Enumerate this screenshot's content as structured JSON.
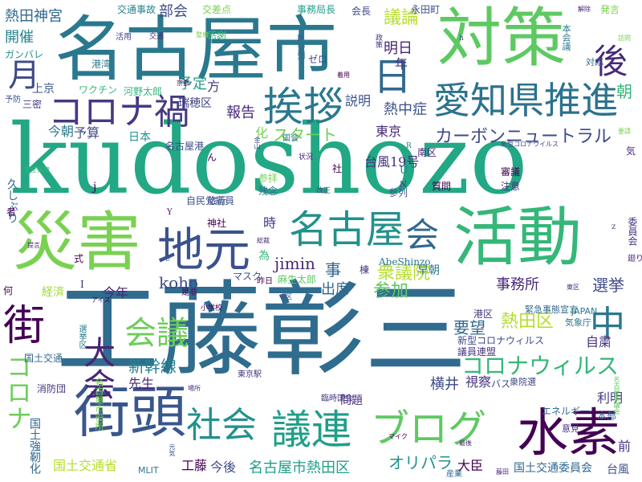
{
  "words": [
    {
      "text": "kudoshozo",
      "color": "#22A884"
    },
    {
      "text": "工藤彰三",
      "color": "#2F6C8E"
    },
    {
      "text": "名古屋市",
      "color": "#2A788E"
    },
    {
      "text": "対策",
      "color": "#5EC962"
    },
    {
      "text": "災害",
      "color": "#7AD151"
    },
    {
      "text": "活動",
      "color": "#35B779"
    },
    {
      "text": "地元",
      "color": "#3B528B"
    },
    {
      "text": "名古屋",
      "color": "#21918C"
    },
    {
      "text": "会",
      "color": "#31688E"
    },
    {
      "text": "愛知県推進",
      "color": "#2C728E"
    },
    {
      "text": "挨拶",
      "color": "#2A788E"
    },
    {
      "text": "コロナ禍",
      "color": "#443A83"
    },
    {
      "text": "日",
      "color": "#31688E"
    },
    {
      "text": "月",
      "color": "#3E4A89"
    },
    {
      "text": "後",
      "color": "#482878"
    },
    {
      "text": "街頭",
      "color": "#39568C"
    },
    {
      "text": "大会",
      "color": "#482475"
    },
    {
      "text": "会議",
      "color": "#6DCD59"
    },
    {
      "text": "社会",
      "color": "#21918C"
    },
    {
      "text": "議連",
      "color": "#1F9E89"
    },
    {
      "text": "ブログ",
      "color": "#5EC962"
    },
    {
      "text": "水素",
      "color": "#440154"
    },
    {
      "text": "街",
      "color": "#440154"
    },
    {
      "text": "中",
      "color": "#2A788E"
    },
    {
      "text": "コロナ",
      "color": "#6DCD59"
    },
    {
      "text": "コロナウィルス",
      "color": "#35B779"
    },
    {
      "text": "カーボンニュートラル",
      "color": "#3E4A89"
    },
    {
      "text": "熱田神宮",
      "color": "#31688E"
    },
    {
      "text": "開催",
      "color": "#26828E"
    },
    {
      "text": "部会",
      "color": "#3E4A89"
    },
    {
      "text": "議論",
      "color": "#B5DE2B"
    },
    {
      "text": "明日",
      "color": "#482475"
    },
    {
      "text": "年",
      "color": "#46337E"
    },
    {
      "text": "予定",
      "color": "#1F9E89"
    },
    {
      "text": "方",
      "color": "#443A83"
    },
    {
      "text": "報告",
      "color": "#482878"
    },
    {
      "text": "説明",
      "color": "#3B528B"
    },
    {
      "text": "瑞穂区",
      "color": "#414487"
    },
    {
      "text": "熱中症",
      "color": "#3B528B"
    },
    {
      "text": "東京",
      "color": "#482878"
    },
    {
      "text": "スタート",
      "color": "#6DCD59"
    },
    {
      "text": "今朝",
      "color": "#2A788E"
    },
    {
      "text": "予算",
      "color": "#3E4A89"
    },
    {
      "text": "日本",
      "color": "#21918C"
    },
    {
      "text": "上京",
      "color": "#3B528B"
    },
    {
      "text": "朝",
      "color": "#35B779"
    },
    {
      "text": "化",
      "color": "#7AD151"
    },
    {
      "text": "jimin",
      "color": "#482878"
    },
    {
      "text": "koho",
      "color": "#3E4A89"
    },
    {
      "text": "時",
      "color": "#443A83"
    },
    {
      "text": "事",
      "color": "#31688E"
    },
    {
      "text": "衆議院",
      "color": "#B5DE2B"
    },
    {
      "text": "参加",
      "color": "#5EC962"
    },
    {
      "text": "出席",
      "color": "#31688E"
    },
    {
      "text": "事務所",
      "color": "#482878"
    },
    {
      "text": "選挙",
      "color": "#3E4A89"
    },
    {
      "text": "要望",
      "color": "#31688E"
    },
    {
      "text": "熱田区",
      "color": "#B5DE2B"
    },
    {
      "text": "今年",
      "color": "#482475"
    },
    {
      "text": "新幹線",
      "color": "#26828E"
    },
    {
      "text": "先生",
      "color": "#482878"
    },
    {
      "text": "経済",
      "color": "#A0DA39"
    },
    {
      "text": "国土交通省",
      "color": "#B5DE2B"
    },
    {
      "text": "工藤",
      "color": "#440154"
    },
    {
      "text": "今後",
      "color": "#3E4A89"
    },
    {
      "text": "名古屋市熱田区",
      "color": "#1F9E89"
    },
    {
      "text": "オリパラ",
      "color": "#21918C"
    },
    {
      "text": "大臣",
      "color": "#440154"
    },
    {
      "text": "横井",
      "color": "#3E4A89"
    },
    {
      "text": "問題",
      "color": "#482878"
    },
    {
      "text": "視察",
      "color": "#46337E"
    },
    {
      "text": "新型コロナウィルス",
      "color": "#3E4A89"
    },
    {
      "text": "議員連盟",
      "color": "#46337E"
    },
    {
      "text": "自粛",
      "color": "#46337E"
    },
    {
      "text": "利明",
      "color": "#443A83"
    },
    {
      "text": "前",
      "color": "#46337E"
    },
    {
      "text": "国土交通委員会",
      "color": "#31688E"
    },
    {
      "text": "台風",
      "color": "#3B528B"
    },
    {
      "text": "エネルギー",
      "color": "#31688E"
    },
    {
      "text": "本部",
      "color": "#31688E"
    },
    {
      "text": "緊急事態宣言",
      "color": "#31688E"
    },
    {
      "text": "港区",
      "color": "#46337E"
    },
    {
      "text": "バス",
      "color": "#3E4A89"
    },
    {
      "text": "衆院選",
      "color": "#414487"
    },
    {
      "text": "早朝",
      "color": "#2A788E"
    },
    {
      "text": "AbeShinzo",
      "color": "#2A788E"
    },
    {
      "text": "麻生太郎",
      "color": "#5EC962"
    },
    {
      "text": "マスク",
      "color": "#3B528B"
    },
    {
      "text": "為",
      "color": "#35B779"
    },
    {
      "text": "旅行",
      "color": "#3E4A89"
    },
    {
      "text": "参拝",
      "color": "#7AD151"
    },
    {
      "text": "残念",
      "color": "#31688E"
    },
    {
      "text": "神社",
      "color": "#440154"
    },
    {
      "text": "台風19号",
      "color": "#46337E"
    },
    {
      "text": "参列",
      "color": "#39568C"
    },
    {
      "text": "質問",
      "color": "#440154"
    },
    {
      "text": "注意",
      "color": "#46337E"
    },
    {
      "text": "審議",
      "color": "#440154"
    },
    {
      "text": "南区",
      "color": "#482878"
    },
    {
      "text": "自民党議員",
      "color": "#3B528B"
    },
    {
      "text": "名古屋港",
      "color": "#3E4A89"
    },
    {
      "text": "ワクチン",
      "color": "#35B779"
    },
    {
      "text": "港湾",
      "color": "#2A788E"
    },
    {
      "text": "河野太郎",
      "color": "#35B779"
    },
    {
      "text": "久しぶり",
      "color": "#31688E"
    },
    {
      "text": "三密",
      "color": "#443A83"
    },
    {
      "text": "ガンバレ",
      "color": "#21918C"
    },
    {
      "text": "交通事故",
      "color": "#26828E"
    },
    {
      "text": "交差点",
      "color": "#7AD151"
    },
    {
      "text": "感謝",
      "color": "#35B779"
    },
    {
      "text": "事務局長",
      "color": "#1F9E89"
    },
    {
      "text": "会長",
      "color": "#3E4A89"
    },
    {
      "text": "永田町",
      "color": "#3E4A89"
    },
    {
      "text": "発言",
      "color": "#7AD151"
    },
    {
      "text": "委員会",
      "color": "#46337E"
    },
    {
      "text": "選挙区",
      "color": "#2A788E"
    },
    {
      "text": "名古屋市役所",
      "color": "#7AD151"
    },
    {
      "text": "国土交通",
      "color": "#31688E"
    },
    {
      "text": "消防団",
      "color": "#46337E"
    },
    {
      "text": "国土強靭化",
      "color": "#31688E"
    },
    {
      "text": "MLIT",
      "color": "#2A788E"
    },
    {
      "text": "JAPAN",
      "color": "#2A788E"
    },
    {
      "text": "気象庁",
      "color": "#2A788E"
    },
    {
      "text": "臨時国会",
      "color": "#443A83"
    },
    {
      "text": "東京駅",
      "color": "#46337E"
    },
    {
      "text": "意見",
      "color": "#46337E"
    },
    {
      "text": "産業",
      "color": "#31688E"
    },
    {
      "text": "者",
      "color": "#440154"
    },
    {
      "text": "何",
      "color": "#440154"
    },
    {
      "text": "式",
      "color": "#440154"
    },
    {
      "text": "昨日",
      "color": "#440154"
    },
    {
      "text": "是非",
      "color": "#440154"
    },
    {
      "text": "小学校",
      "color": "#440154"
    },
    {
      "text": "活用",
      "color": "#414487"
    },
    {
      "text": "新型コロナウイルス",
      "color": "#414487"
    },
    {
      "text": "ゼロ",
      "color": "#3E4A89"
    },
    {
      "text": "本会議",
      "color": "#2A788E"
    },
    {
      "text": "対応",
      "color": "#31688E"
    },
    {
      "text": "ん",
      "color": "#440154"
    },
    {
      "text": "j",
      "color": "#440154"
    },
    {
      "text": "Y",
      "color": "#440154"
    },
    {
      "text": "I",
      "color": "#482878"
    },
    {
      "text": "O",
      "color": "#2A788E"
    },
    {
      "text": "U",
      "color": "#2A788E"
    },
    {
      "text": "N",
      "color": "#482878"
    },
    {
      "text": "R",
      "color": "#2A788E"
    },
    {
      "text": "P",
      "color": "#3B528B"
    },
    {
      "text": "h",
      "color": "#3B528B"
    },
    {
      "text": "e",
      "color": "#3B528B"
    },
    {
      "text": "z",
      "color": "#3E4A89"
    },
    {
      "text": "社",
      "color": "#440154"
    },
    {
      "text": "棟",
      "color": "#46337E"
    },
    {
      "text": "廻り",
      "color": "#482878"
    },
    {
      "text": "気",
      "color": "#482878"
    },
    {
      "text": "国会",
      "color": "#2A788E"
    },
    {
      "text": "改正",
      "color": "#3E4A89"
    },
    {
      "text": "状況",
      "color": "#482878"
    },
    {
      "text": "予防",
      "color": "#3B528B"
    },
    {
      "text": "京都",
      "color": "#440154"
    },
    {
      "text": "交通",
      "color": "#482878"
    },
    {
      "text": "政策",
      "color": "#46337E"
    },
    {
      "text": "愛知",
      "color": "#31688E"
    },
    {
      "text": "安全保障",
      "color": "#35B779"
    },
    {
      "text": "最後",
      "color": "#482878"
    },
    {
      "text": "場所",
      "color": "#46337E"
    },
    {
      "text": "元気",
      "color": "#3B528B"
    },
    {
      "text": "藤田",
      "color": "#482878"
    },
    {
      "text": "アイス",
      "color": "#440154"
    },
    {
      "text": "マイク",
      "color": "#440154"
    },
    {
      "text": "提言",
      "color": "#482878"
    },
    {
      "text": "名古屋市議会",
      "color": "#5EC962"
    },
    {
      "text": "解除",
      "color": "#482878"
    },
    {
      "text": "着用",
      "color": "#440154"
    },
    {
      "text": "東区",
      "color": "#46337E"
    },
    {
      "text": "整備",
      "color": "#7AD151"
    },
    {
      "text": "総裁",
      "color": "#482878"
    },
    {
      "text": "中区",
      "color": "#3E4A89"
    },
    {
      "text": "金山",
      "color": "#3E4A89"
    },
    {
      "text": "訪問",
      "color": "#7AD151"
    },
    {
      "text": "要請",
      "color": "#7AD151"
    }
  ]
}
